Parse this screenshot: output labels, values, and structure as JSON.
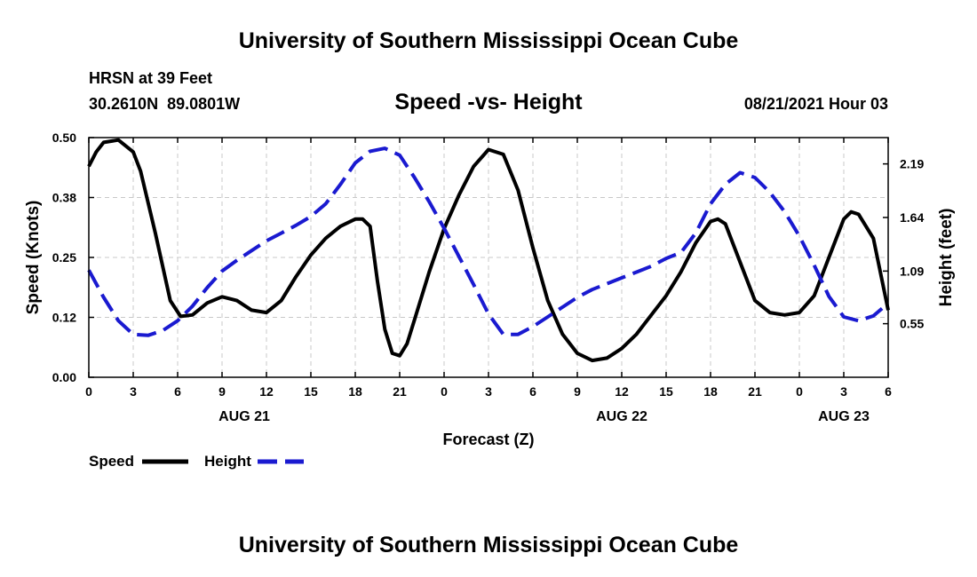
{
  "header": {
    "title_top": "University of Southern Mississippi Ocean Cube",
    "title_bottom": "University of Southern Mississippi Ocean Cube",
    "station": "HRSN at 39 Feet",
    "coords": "30.2610N  89.0801W",
    "datetime": "08/21/2021 Hour 03"
  },
  "legend": {
    "speed_label": "Speed",
    "height_label": "Height"
  },
  "colors": {
    "speed": "#000000",
    "height": "#1a1ad0",
    "grid": "#c8c8c8"
  },
  "chart_data": {
    "type": "line",
    "title": "Speed -vs- Height",
    "xlabel": "Forecast (Z)",
    "ylabel_left": "Speed (Knots)",
    "ylabel_right": "Height (feet)",
    "xlim": [
      0,
      54
    ],
    "ylim_left": [
      0,
      0.5
    ],
    "ylim_right": [
      0.0,
      2.46
    ],
    "x_ticks": [
      {
        "x": 0,
        "label": "0"
      },
      {
        "x": 3,
        "label": "3"
      },
      {
        "x": 6,
        "label": "6"
      },
      {
        "x": 9,
        "label": "9"
      },
      {
        "x": 12,
        "label": "12"
      },
      {
        "x": 15,
        "label": "15"
      },
      {
        "x": 18,
        "label": "18"
      },
      {
        "x": 21,
        "label": "21"
      },
      {
        "x": 24,
        "label": "0"
      },
      {
        "x": 27,
        "label": "3"
      },
      {
        "x": 30,
        "label": "6"
      },
      {
        "x": 33,
        "label": "9"
      },
      {
        "x": 36,
        "label": "12"
      },
      {
        "x": 39,
        "label": "15"
      },
      {
        "x": 42,
        "label": "18"
      },
      {
        "x": 45,
        "label": "21"
      },
      {
        "x": 48,
        "label": "0"
      },
      {
        "x": 51,
        "label": "3"
      },
      {
        "x": 54,
        "label": "6"
      }
    ],
    "date_labels": [
      {
        "x": 10.5,
        "label": "AUG 21"
      },
      {
        "x": 36,
        "label": "AUG 22"
      },
      {
        "x": 51,
        "label": "AUG 23"
      }
    ],
    "y_ticks_left": [
      {
        "value": 0.0,
        "label": "0.00"
      },
      {
        "value": 0.125,
        "label": "0.12"
      },
      {
        "value": 0.25,
        "label": "0.25"
      },
      {
        "value": 0.375,
        "label": "0.38"
      },
      {
        "value": 0.5,
        "label": "0.50"
      }
    ],
    "y_ticks_right": [
      {
        "value": 0.55,
        "label": "0.55"
      },
      {
        "value": 1.09,
        "label": "1.09"
      },
      {
        "value": 1.64,
        "label": "1.64"
      },
      {
        "value": 2.19,
        "label": "2.19"
      }
    ],
    "series": [
      {
        "name": "Speed",
        "axis": "left",
        "style": "solid",
        "x": [
          0,
          0.5,
          1,
          2,
          3,
          3.5,
          4.5,
          5.5,
          6.2,
          7,
          8,
          9,
          10,
          11,
          12,
          13,
          14,
          15,
          16,
          17,
          18,
          18.5,
          19,
          19.5,
          20,
          20.5,
          21,
          21.5,
          22,
          23,
          24,
          25,
          26,
          27,
          28,
          29,
          30,
          31,
          32,
          33,
          34,
          35,
          36,
          37,
          38,
          39,
          40,
          41,
          42,
          42.5,
          43,
          44,
          45,
          46,
          47,
          48,
          49,
          50,
          51,
          51.5,
          52,
          53,
          54
        ],
        "values": [
          0.44,
          0.47,
          0.49,
          0.495,
          0.47,
          0.43,
          0.3,
          0.16,
          0.127,
          0.13,
          0.155,
          0.168,
          0.16,
          0.14,
          0.135,
          0.16,
          0.21,
          0.255,
          0.29,
          0.315,
          0.33,
          0.33,
          0.315,
          0.2,
          0.1,
          0.05,
          0.045,
          0.07,
          0.12,
          0.22,
          0.31,
          0.38,
          0.44,
          0.475,
          0.465,
          0.39,
          0.27,
          0.16,
          0.09,
          0.05,
          0.035,
          0.04,
          0.06,
          0.09,
          0.13,
          0.17,
          0.22,
          0.28,
          0.325,
          0.33,
          0.32,
          0.24,
          0.16,
          0.135,
          0.13,
          0.135,
          0.17,
          0.25,
          0.33,
          0.345,
          0.34,
          0.29,
          0.14
        ]
      },
      {
        "name": "Height",
        "axis": "right",
        "style": "dashed",
        "x": [
          0,
          1,
          2,
          3,
          4,
          5,
          6,
          7,
          8,
          9,
          10,
          11,
          12,
          13,
          14,
          15,
          16,
          17,
          18,
          19,
          20,
          21,
          22,
          23,
          24,
          25,
          26,
          27,
          28,
          29,
          30,
          31,
          32,
          33,
          34,
          35,
          36,
          37,
          38,
          39,
          40,
          41,
          42,
          43,
          44,
          45,
          46,
          47,
          48,
          49,
          50,
          51,
          52,
          53,
          54
        ],
        "values": [
          1.1,
          0.82,
          0.58,
          0.44,
          0.43,
          0.48,
          0.58,
          0.73,
          0.92,
          1.09,
          1.2,
          1.3,
          1.4,
          1.48,
          1.56,
          1.65,
          1.78,
          1.98,
          2.2,
          2.32,
          2.35,
          2.28,
          2.05,
          1.8,
          1.53,
          1.24,
          0.95,
          0.65,
          0.44,
          0.44,
          0.52,
          0.62,
          0.72,
          0.82,
          0.9,
          0.96,
          1.02,
          1.08,
          1.14,
          1.22,
          1.28,
          1.48,
          1.78,
          1.98,
          2.1,
          2.05,
          1.9,
          1.7,
          1.45,
          1.15,
          0.83,
          0.62,
          0.58,
          0.63,
          0.76
        ]
      }
    ]
  }
}
